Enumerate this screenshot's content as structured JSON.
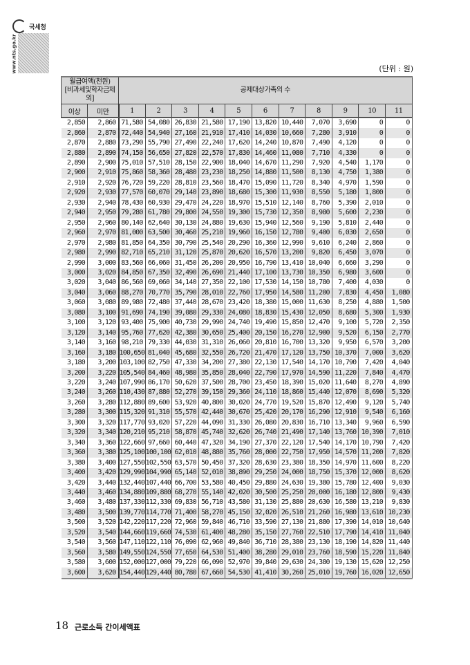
{
  "header": {
    "org": "국세청",
    "url": "www.nts.go.kr",
    "unit": "(단위 : 원)"
  },
  "table": {
    "col_group_label_line1": "월급여액(천원)",
    "col_group_label_line2": "[비과세및학자금제외]",
    "family_header": "공제대상가족의 수",
    "min_label": "이상",
    "max_label": "미만",
    "family_counts": [
      "1",
      "2",
      "3",
      "4",
      "5",
      "6",
      "7",
      "8",
      "9",
      "10",
      "11"
    ],
    "rows": [
      [
        "2,850",
        "2,860",
        "71,580",
        "54,080",
        "26,830",
        "21,580",
        "17,190",
        "13,820",
        "10,440",
        "7,070",
        "3,690",
        "0",
        "0"
      ],
      [
        "2,860",
        "2,870",
        "72,440",
        "54,940",
        "27,160",
        "21,910",
        "17,410",
        "14,030",
        "10,660",
        "7,280",
        "3,910",
        "0",
        "0"
      ],
      [
        "2,870",
        "2,880",
        "73,290",
        "55,790",
        "27,490",
        "22,240",
        "17,620",
        "14,240",
        "10,870",
        "7,490",
        "4,120",
        "0",
        "0"
      ],
      [
        "2,880",
        "2,890",
        "74,150",
        "56,650",
        "27,820",
        "22,570",
        "17,830",
        "14,460",
        "11,080",
        "7,710",
        "4,330",
        "0",
        "0"
      ],
      [
        "2,890",
        "2,900",
        "75,010",
        "57,510",
        "28,150",
        "22,900",
        "18,040",
        "14,670",
        "11,290",
        "7,920",
        "4,540",
        "1,170",
        "0"
      ],
      [
        "2,900",
        "2,910",
        "75,860",
        "58,360",
        "28,480",
        "23,230",
        "18,250",
        "14,880",
        "11,500",
        "8,130",
        "4,750",
        "1,380",
        "0"
      ],
      [
        "2,910",
        "2,920",
        "76,720",
        "59,220",
        "28,810",
        "23,560",
        "18,470",
        "15,090",
        "11,720",
        "8,340",
        "4,970",
        "1,590",
        "0"
      ],
      [
        "2,920",
        "2,930",
        "77,570",
        "60,070",
        "29,140",
        "23,890",
        "18,680",
        "15,300",
        "11,930",
        "8,550",
        "5,180",
        "1,800",
        "0"
      ],
      [
        "2,930",
        "2,940",
        "78,430",
        "60,930",
        "29,470",
        "24,220",
        "18,970",
        "15,510",
        "12,140",
        "8,760",
        "5,390",
        "2,010",
        "0"
      ],
      [
        "2,940",
        "2,950",
        "79,280",
        "61,780",
        "29,800",
        "24,550",
        "19,300",
        "15,730",
        "12,350",
        "8,980",
        "5,600",
        "2,230",
        "0"
      ],
      [
        "2,950",
        "2,960",
        "80,140",
        "62,640",
        "30,130",
        "24,880",
        "19,630",
        "15,940",
        "12,560",
        "9,190",
        "5,810",
        "2,440",
        "0"
      ],
      [
        "2,960",
        "2,970",
        "81,000",
        "63,500",
        "30,460",
        "25,210",
        "19,960",
        "16,150",
        "12,780",
        "9,400",
        "6,030",
        "2,650",
        "0"
      ],
      [
        "2,970",
        "2,980",
        "81,850",
        "64,350",
        "30,790",
        "25,540",
        "20,290",
        "16,360",
        "12,990",
        "9,610",
        "6,240",
        "2,860",
        "0"
      ],
      [
        "2,980",
        "2,990",
        "82,710",
        "65,210",
        "31,120",
        "25,870",
        "20,620",
        "16,570",
        "13,200",
        "9,820",
        "6,450",
        "3,070",
        "0"
      ],
      [
        "2,990",
        "3,000",
        "83,560",
        "66,060",
        "31,450",
        "26,200",
        "20,950",
        "16,790",
        "13,410",
        "10,040",
        "6,660",
        "3,290",
        "0"
      ],
      [
        "3,000",
        "3,020",
        "84,850",
        "67,350",
        "32,490",
        "26,690",
        "21,440",
        "17,100",
        "13,730",
        "10,350",
        "6,980",
        "3,600",
        "0"
      ],
      [
        "3,020",
        "3,040",
        "86,560",
        "69,060",
        "34,140",
        "27,350",
        "22,100",
        "17,530",
        "14,150",
        "10,780",
        "7,400",
        "4,030",
        "0"
      ],
      [
        "3,040",
        "3,060",
        "88,270",
        "70,770",
        "35,790",
        "28,010",
        "22,760",
        "17,950",
        "14,580",
        "11,200",
        "7,830",
        "4,450",
        "1,080"
      ],
      [
        "3,060",
        "3,080",
        "89,980",
        "72,480",
        "37,440",
        "28,670",
        "23,420",
        "18,380",
        "15,000",
        "11,630",
        "8,250",
        "4,880",
        "1,500"
      ],
      [
        "3,080",
        "3,100",
        "91,690",
        "74,190",
        "39,080",
        "29,330",
        "24,080",
        "18,830",
        "15,430",
        "12,050",
        "8,680",
        "5,300",
        "1,930"
      ],
      [
        "3,100",
        "3,120",
        "93,400",
        "75,900",
        "40,730",
        "29,990",
        "24,740",
        "19,490",
        "15,850",
        "12,470",
        "9,100",
        "5,720",
        "2,350"
      ],
      [
        "3,120",
        "3,140",
        "95,760",
        "77,620",
        "42,380",
        "30,650",
        "25,400",
        "20,150",
        "16,270",
        "12,900",
        "9,520",
        "6,150",
        "2,770"
      ],
      [
        "3,140",
        "3,160",
        "98,210",
        "79,330",
        "44,030",
        "31,310",
        "26,060",
        "20,810",
        "16,700",
        "13,320",
        "9,950",
        "6,570",
        "3,200"
      ],
      [
        "3,160",
        "3,180",
        "100,650",
        "81,040",
        "45,680",
        "32,550",
        "26,720",
        "21,470",
        "17,120",
        "13,750",
        "10,370",
        "7,000",
        "3,620"
      ],
      [
        "3,180",
        "3,200",
        "103,100",
        "82,750",
        "47,330",
        "34,200",
        "27,380",
        "22,130",
        "17,540",
        "14,170",
        "10,790",
        "7,420",
        "4,040"
      ],
      [
        "3,200",
        "3,220",
        "105,540",
        "84,460",
        "48,980",
        "35,850",
        "28,040",
        "22,790",
        "17,970",
        "14,590",
        "11,220",
        "7,840",
        "4,470"
      ],
      [
        "3,220",
        "3,240",
        "107,990",
        "86,170",
        "50,620",
        "37,500",
        "28,700",
        "23,450",
        "18,390",
        "15,020",
        "11,640",
        "8,270",
        "4,890"
      ],
      [
        "3,240",
        "3,260",
        "110,430",
        "87,880",
        "52,270",
        "39,150",
        "29,360",
        "24,110",
        "18,860",
        "15,440",
        "12,070",
        "8,690",
        "5,320"
      ],
      [
        "3,260",
        "3,280",
        "112,880",
        "89,600",
        "53,920",
        "40,800",
        "30,020",
        "24,770",
        "19,520",
        "15,870",
        "12,490",
        "9,120",
        "5,740"
      ],
      [
        "3,280",
        "3,300",
        "115,320",
        "91,310",
        "55,570",
        "42,440",
        "30,670",
        "25,420",
        "20,170",
        "16,290",
        "12,910",
        "9,540",
        "6,160"
      ],
      [
        "3,300",
        "3,320",
        "117,770",
        "93,020",
        "57,220",
        "44,090",
        "31,330",
        "26,080",
        "20,830",
        "16,710",
        "13,340",
        "9,960",
        "6,590"
      ],
      [
        "3,320",
        "3,340",
        "120,210",
        "95,210",
        "58,870",
        "45,740",
        "32,620",
        "26,740",
        "21,490",
        "17,140",
        "13,760",
        "10,390",
        "7,010"
      ],
      [
        "3,340",
        "3,360",
        "122,660",
        "97,660",
        "60,440",
        "47,320",
        "34,190",
        "27,370",
        "22,120",
        "17,540",
        "14,170",
        "10,790",
        "7,420"
      ],
      [
        "3,360",
        "3,380",
        "125,100",
        "100,100",
        "62,010",
        "48,880",
        "35,760",
        "28,000",
        "22,750",
        "17,950",
        "14,570",
        "11,200",
        "7,820"
      ],
      [
        "3,380",
        "3,400",
        "127,550",
        "102,550",
        "63,570",
        "50,450",
        "37,320",
        "28,630",
        "23,380",
        "18,350",
        "14,970",
        "11,600",
        "8,220"
      ],
      [
        "3,400",
        "3,420",
        "129,990",
        "104,990",
        "65,140",
        "52,010",
        "38,890",
        "29,250",
        "24,000",
        "18,750",
        "15,370",
        "12,000",
        "8,620"
      ],
      [
        "3,420",
        "3,440",
        "132,440",
        "107,440",
        "66,700",
        "53,580",
        "40,450",
        "29,880",
        "24,630",
        "19,380",
        "15,780",
        "12,400",
        "9,030"
      ],
      [
        "3,440",
        "3,460",
        "134,880",
        "109,880",
        "68,270",
        "55,140",
        "42,020",
        "30,500",
        "25,250",
        "20,000",
        "16,180",
        "12,800",
        "9,430"
      ],
      [
        "3,460",
        "3,480",
        "137,330",
        "112,330",
        "69,830",
        "56,710",
        "43,580",
        "31,130",
        "25,880",
        "20,630",
        "16,580",
        "13,210",
        "9,830"
      ],
      [
        "3,480",
        "3,500",
        "139,770",
        "114,770",
        "71,400",
        "58,270",
        "45,150",
        "32,020",
        "26,510",
        "21,260",
        "16,980",
        "13,610",
        "10,230"
      ],
      [
        "3,500",
        "3,520",
        "142,220",
        "117,220",
        "72,960",
        "59,840",
        "46,710",
        "33,590",
        "27,130",
        "21,880",
        "17,390",
        "14,010",
        "10,640"
      ],
      [
        "3,520",
        "3,540",
        "144,660",
        "119,660",
        "74,530",
        "61,400",
        "48,280",
        "35,150",
        "27,760",
        "22,510",
        "17,790",
        "14,410",
        "11,040"
      ],
      [
        "3,540",
        "3,560",
        "147,110",
        "122,110",
        "76,090",
        "62,960",
        "49,840",
        "36,710",
        "28,380",
        "23,130",
        "18,190",
        "14,820",
        "11,440"
      ],
      [
        "3,560",
        "3,580",
        "149,550",
        "124,550",
        "77,650",
        "64,530",
        "51,400",
        "38,280",
        "29,010",
        "23,760",
        "18,590",
        "15,220",
        "11,840"
      ],
      [
        "3,580",
        "3,600",
        "152,000",
        "127,000",
        "79,220",
        "66,090",
        "52,970",
        "39,840",
        "29,630",
        "24,380",
        "19,130",
        "15,620",
        "12,250"
      ],
      [
        "3,600",
        "3,620",
        "154,440",
        "129,440",
        "80,780",
        "67,660",
        "54,530",
        "41,410",
        "30,260",
        "25,010",
        "19,760",
        "16,020",
        "12,650"
      ]
    ]
  },
  "footer": {
    "page_number": "18",
    "title": "근로소득 간이세액표"
  }
}
